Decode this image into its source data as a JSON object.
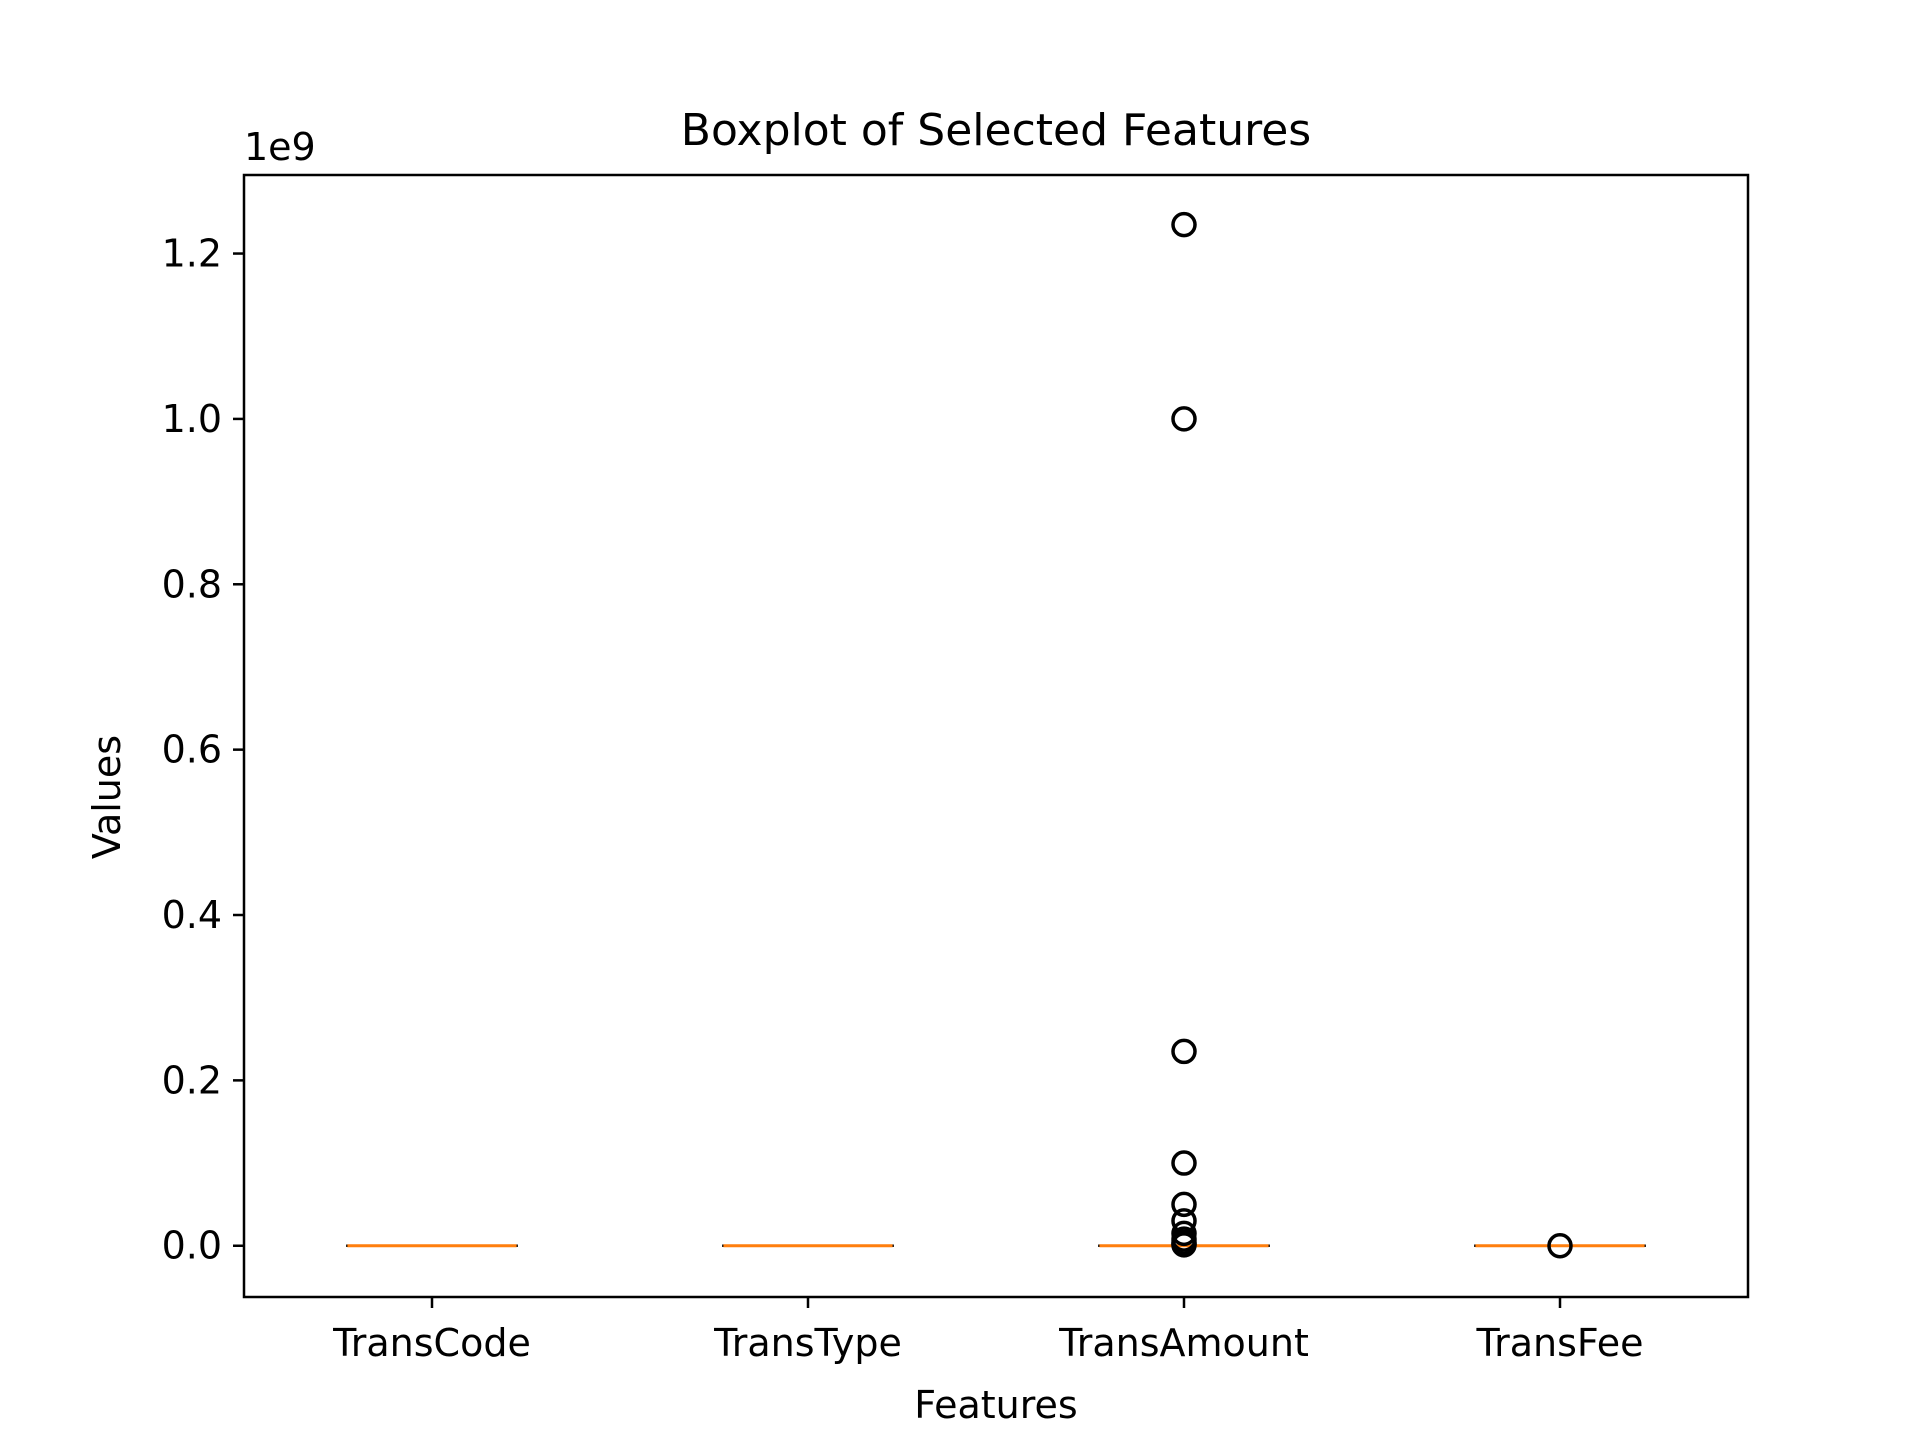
{
  "chart_data": {
    "type": "boxplot",
    "title": "Boxplot of Selected Features",
    "xlabel": "Features",
    "ylabel": "Values",
    "y_offset_label": "1e9",
    "ylim": [
      -0.062,
      1.295
    ],
    "y_ticks": [
      0.0,
      0.2,
      0.4,
      0.6,
      0.8,
      1.0,
      1.2
    ],
    "y_tick_labels": [
      "0.0",
      "0.2",
      "0.4",
      "0.6",
      "0.8",
      "1.0",
      "1.2"
    ],
    "grid": false,
    "categories": [
      "TransCode",
      "TransType",
      "TransAmount",
      "TransFee"
    ],
    "boxes": [
      {
        "q1": 0,
        "median": 0,
        "q3": 0,
        "whisker_low": 0,
        "whisker_high": 0,
        "outliers": []
      },
      {
        "q1": 0,
        "median": 0,
        "q3": 0,
        "whisker_low": 0,
        "whisker_high": 0,
        "outliers": []
      },
      {
        "q1": 0,
        "median": 0,
        "q3": 0,
        "whisker_low": 0,
        "whisker_high": 0,
        "outliers": [
          1.235,
          1.0,
          0.235,
          0.1,
          0.05,
          0.03,
          0.015,
          0.008,
          0.004,
          0.002,
          0.001
        ]
      },
      {
        "q1": 0,
        "median": 0,
        "q3": 0,
        "whisker_low": 0,
        "whisker_high": 0,
        "outliers": [
          0.0
        ]
      }
    ],
    "colors": {
      "median": "#ff7f0e",
      "box": "#000000",
      "outlier": "#000000",
      "axes": "#000000"
    }
  }
}
